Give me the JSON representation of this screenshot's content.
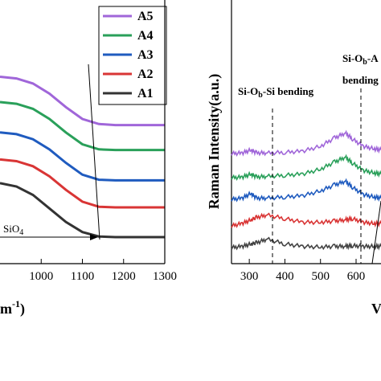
{
  "chart_data": [
    {
      "type": "line",
      "xlim": [
        900,
        1300
      ],
      "x_ticks": [
        "1000",
        "1100",
        "1200",
        "1300"
      ],
      "xlabel_fragment": "m",
      "xlabel_superscript": "-1",
      "xlabel_close": ")",
      "annotation": {
        "text": "SiO",
        "subscript": "4"
      },
      "legend_position": "top-right",
      "series": [
        {
          "name": "A5",
          "color": "#a066d9",
          "x": [
            900,
            940,
            980,
            1020,
            1060,
            1100,
            1140,
            1180,
            1220,
            1260,
            1300
          ],
          "y": [
            4.75,
            4.7,
            4.55,
            4.25,
            3.85,
            3.5,
            3.35,
            3.32,
            3.32,
            3.32,
            3.32
          ]
        },
        {
          "name": "A4",
          "color": "#2aa05a",
          "x": [
            900,
            940,
            980,
            1020,
            1060,
            1100,
            1140,
            1180,
            1220,
            1260,
            1300
          ],
          "y": [
            4.0,
            3.95,
            3.8,
            3.5,
            3.1,
            2.75,
            2.6,
            2.58,
            2.58,
            2.58,
            2.58
          ]
        },
        {
          "name": "A3",
          "color": "#1f5bbf",
          "x": [
            900,
            940,
            980,
            1020,
            1060,
            1100,
            1140,
            1180,
            1220,
            1260,
            1300
          ],
          "y": [
            3.1,
            3.05,
            2.9,
            2.6,
            2.2,
            1.85,
            1.7,
            1.68,
            1.68,
            1.68,
            1.68
          ]
        },
        {
          "name": "A2",
          "color": "#d93535",
          "x": [
            900,
            940,
            980,
            1020,
            1060,
            1100,
            1140,
            1180,
            1220,
            1260,
            1300
          ],
          "y": [
            2.3,
            2.25,
            2.1,
            1.8,
            1.4,
            1.05,
            0.9,
            0.88,
            0.88,
            0.88,
            0.88
          ]
        },
        {
          "name": "A1",
          "color": "#333333",
          "x": [
            900,
            940,
            980,
            1020,
            1060,
            1100,
            1140,
            1180,
            1220,
            1260,
            1300
          ],
          "y": [
            1.6,
            1.5,
            1.25,
            0.85,
            0.45,
            0.15,
            0.02,
            0.0,
            0.0,
            0.0,
            0.0
          ]
        }
      ]
    },
    {
      "type": "line",
      "ylabel": "Raman Intensity(a.u.)",
      "xlim": [
        250,
        670
      ],
      "x_ticks": [
        "300",
        "400",
        "500",
        "600"
      ],
      "xlabel_fragment": "V",
      "annotations": [
        {
          "text": "Si-O",
          "subscript": "b",
          "suffix": "-Si bending",
          "x": 350
        },
        {
          "text": "Si-O",
          "subscript": "b",
          "suffix": "-A",
          "line2": "bending",
          "x": 580
        }
      ],
      "series": [
        {
          "name": "A5",
          "color": "#a066d9",
          "x": [
            250,
            280,
            305,
            320,
            350,
            400,
            450,
            500,
            540,
            570,
            590,
            620,
            650,
            670
          ],
          "y": [
            4.3,
            4.32,
            4.45,
            4.33,
            4.32,
            4.35,
            4.4,
            4.6,
            4.95,
            5.15,
            4.9,
            4.6,
            4.5,
            4.45
          ]
        },
        {
          "name": "A4",
          "color": "#2aa05a",
          "x": [
            250,
            280,
            305,
            320,
            350,
            400,
            450,
            500,
            540,
            570,
            590,
            620,
            650,
            670
          ],
          "y": [
            3.3,
            3.32,
            3.45,
            3.33,
            3.35,
            3.4,
            3.45,
            3.65,
            3.95,
            4.15,
            3.9,
            3.6,
            3.5,
            3.45
          ]
        },
        {
          "name": "A3",
          "color": "#1f5bbf",
          "x": [
            250,
            280,
            305,
            320,
            350,
            400,
            450,
            500,
            540,
            570,
            590,
            620,
            650,
            670
          ],
          "y": [
            2.4,
            2.45,
            2.65,
            2.45,
            2.45,
            2.5,
            2.55,
            2.75,
            3.0,
            3.15,
            2.9,
            2.6,
            2.5,
            2.45
          ]
        },
        {
          "name": "A2",
          "color": "#d93535",
          "x": [
            250,
            280,
            305,
            320,
            350,
            400,
            450,
            500,
            540,
            570,
            590,
            620,
            650,
            670
          ],
          "y": [
            1.3,
            1.4,
            1.55,
            1.65,
            1.75,
            1.6,
            1.45,
            1.45,
            1.5,
            1.55,
            1.6,
            1.45,
            1.4,
            1.4
          ]
        },
        {
          "name": "A1",
          "color": "#444444",
          "x": [
            250,
            280,
            305,
            320,
            350,
            400,
            450,
            500,
            540,
            570,
            590,
            620,
            650,
            670
          ],
          "y": [
            0.4,
            0.45,
            0.55,
            0.6,
            0.75,
            0.55,
            0.45,
            0.42,
            0.45,
            0.45,
            0.48,
            0.45,
            0.45,
            0.45
          ]
        }
      ]
    }
  ]
}
